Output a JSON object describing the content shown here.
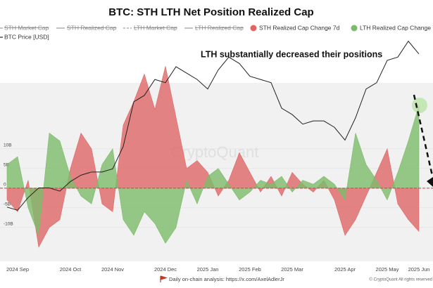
{
  "chart_data": {
    "type": "area",
    "title": "BTC: STH LTH Net Position Realized Cap",
    "annotation": "LTH substantially decreased their positions",
    "watermark": "CryptoQuant",
    "footer": "Daily on-chain analysis: https://x.com/AxelAdlerJr",
    "copyright": "© CryptoQuant All rights reserved",
    "legend_hidden": [
      "STH Market Cap",
      "STH Realized Cap",
      "LTH Market Cap",
      "LTH Realized Cap"
    ],
    "categories": [
      null,
      "2024 Sep",
      null,
      null,
      null,
      null,
      "2024 Oct",
      null,
      null,
      null,
      "2024 Nov",
      null,
      null,
      null,
      null,
      "2024 Dec",
      null,
      null,
      null,
      "2025 Jan",
      null,
      null,
      null,
      "2025 Feb",
      null,
      null,
      null,
      "2025 Mar",
      null,
      null,
      null,
      null,
      "2025 Apr",
      null,
      null,
      null,
      "2025 May",
      null,
      null,
      "2025 Jun"
    ],
    "series": [
      {
        "name": "STH Realized Cap Change 7d",
        "color": "#e06666",
        "values": [
          -3,
          -6,
          2,
          -15,
          -10,
          -8,
          5,
          14,
          10,
          -4,
          -6,
          16,
          22,
          29,
          20,
          31,
          18,
          5,
          7,
          4,
          -2,
          2,
          9,
          4,
          -1,
          3,
          -2,
          4,
          1,
          -1,
          2,
          -3,
          -12,
          -8,
          -2,
          4,
          10,
          -4,
          -8,
          -11
        ]
      },
      {
        "name": "LTH Realized Cap Change 7d",
        "color": "#7dbb6a",
        "values": [
          6,
          8,
          -5,
          -12,
          14,
          12,
          3,
          -2,
          -4,
          6,
          10,
          -8,
          -12,
          -6,
          -9,
          -14,
          -10,
          2,
          -4,
          3,
          5,
          1,
          -3,
          -1,
          2,
          1,
          3,
          -1,
          2,
          1,
          3,
          1,
          -3,
          14,
          6,
          2,
          -3,
          4,
          12,
          21
        ]
      },
      {
        "name": "BTC Price [USD]",
        "color": "#222222",
        "axis": "y2",
        "values": [
          57000,
          56000,
          60000,
          63000,
          63000,
          62000,
          65000,
          67000,
          68000,
          68000,
          69000,
          76000,
          90000,
          92000,
          97000,
          96000,
          101000,
          99000,
          97000,
          94000,
          100000,
          104000,
          102000,
          98000,
          97000,
          96000,
          88000,
          86000,
          83000,
          84000,
          84000,
          82000,
          78000,
          85000,
          94000,
          96000,
          103000,
          104000,
          109000,
          105000
        ]
      }
    ],
    "ylim": [
      -18.6,
      39.8
    ],
    "yticks": [
      {
        "value": -10,
        "label": "-10B"
      },
      {
        "value": -5,
        "label": "-5B"
      },
      0,
      {
        "value": 5,
        "label": "5B"
      },
      {
        "value": 10,
        "label": "10B"
      }
    ],
    "y2lim": [
      40000,
      112000
    ]
  }
}
